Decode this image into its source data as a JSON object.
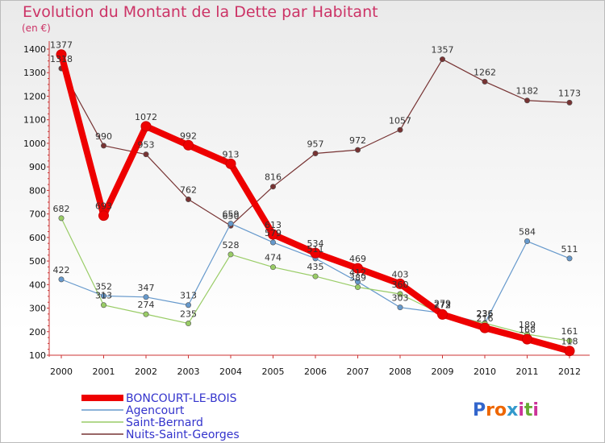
{
  "title": "Evolution du Montant de la Dette par Habitant",
  "unit": "(en €)",
  "logo": "Proxiti",
  "chart_data": {
    "type": "line",
    "x": [
      "2000",
      "2001",
      "2002",
      "2003",
      "2004",
      "2005",
      "2006",
      "2007",
      "2008",
      "2009",
      "2010",
      "2011",
      "2012"
    ],
    "ylim": [
      100,
      1400
    ],
    "yticks": [
      100,
      200,
      300,
      400,
      500,
      600,
      700,
      800,
      900,
      1000,
      1100,
      1200,
      1300,
      1400
    ],
    "grid": false,
    "legend": "bottom-left",
    "series": [
      {
        "name": "BONCOURT-LE-BOIS",
        "color": "#ee0000",
        "values": [
          1377,
          693,
          1072,
          992,
          913,
          613,
          534,
          469,
          403,
          273,
          216,
          168,
          118
        ]
      },
      {
        "name": "Agencourt",
        "color": "#6699cc",
        "values": [
          422,
          352,
          347,
          313,
          659,
          579,
          511,
          412,
          303,
          279,
          235,
          584,
          511
        ]
      },
      {
        "name": "Saint-Bernard",
        "color": "#99cc66",
        "values": [
          682,
          313,
          274,
          235,
          528,
          474,
          435,
          389,
          360,
          272,
          236,
          189,
          161
        ]
      },
      {
        "name": "Nuits-Saint-Georges",
        "color": "#773333",
        "values": [
          1318,
          990,
          953,
          762,
          650,
          816,
          957,
          972,
          1057,
          1357,
          1262,
          1182,
          1173
        ]
      }
    ]
  }
}
